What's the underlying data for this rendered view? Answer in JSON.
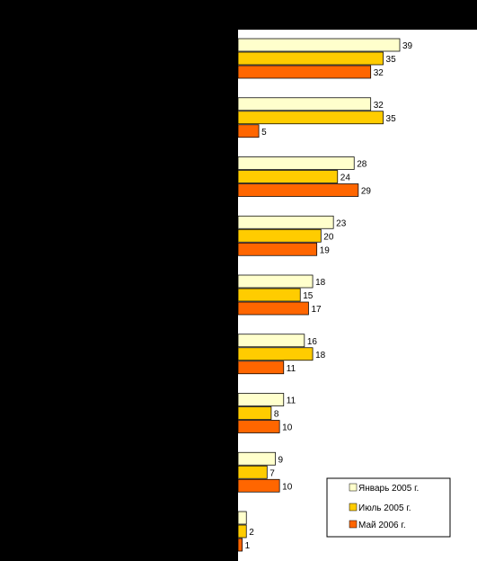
{
  "chart_data": {
    "type": "bar",
    "orientation": "horizontal",
    "categories": [
      "",
      "",
      "",
      "",
      "",
      "",
      "",
      "",
      ""
    ],
    "series": [
      {
        "name": "Январь 2005 г.",
        "color": "#FFFFCC",
        "values": [
          39,
          32,
          28,
          23,
          18,
          16,
          11,
          9,
          2
        ]
      },
      {
        "name": "Июль 2005 г.",
        "color": "#FFCC00",
        "values": [
          35,
          35,
          24,
          20,
          15,
          18,
          8,
          7,
          2
        ]
      },
      {
        "name": "Май 2006 г.",
        "color": "#FF6600",
        "values": [
          32,
          5,
          29,
          19,
          17,
          11,
          10,
          10,
          1
        ]
      }
    ],
    "value_labels": [
      [
        "39",
        "35",
        "32"
      ],
      [
        "32",
        "35",
        "5"
      ],
      [
        "28",
        "24",
        "29"
      ],
      [
        "23",
        "20",
        "19"
      ],
      [
        "18",
        "15",
        "17"
      ],
      [
        "16",
        "18",
        "11"
      ],
      [
        "11",
        "8",
        "10"
      ],
      [
        "9",
        "7",
        "10"
      ],
      [
        "",
        "2",
        "1"
      ]
    ],
    "xlim": [
      0,
      55
    ],
    "grid": false,
    "legend_position": "bottom-right",
    "background": "#000000",
    "plot_background": "#FFFFFF"
  }
}
